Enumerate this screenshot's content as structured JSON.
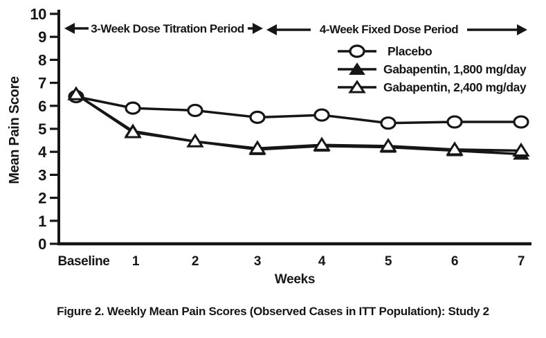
{
  "figure": {
    "caption": "Figure 2. Weekly Mean Pain Scores (Observed Cases in ITT Population): Study 2"
  },
  "annotations": {
    "titration": "3-Week Dose Titration Period",
    "fixed": "4-Week Fixed Dose Period"
  },
  "chart_data": {
    "type": "line",
    "title": "",
    "categories": [
      "Baseline",
      "1",
      "2",
      "3",
      "4",
      "5",
      "6",
      "7"
    ],
    "series": [
      {
        "name": "Placebo",
        "marker": "circle-open",
        "values": [
          6.4,
          5.9,
          5.8,
          5.5,
          5.6,
          5.25,
          5.3,
          5.3
        ]
      },
      {
        "name": "Gabapentin, 1,800 mg/day",
        "marker": "triangle-filled",
        "values": [
          6.5,
          4.9,
          4.45,
          4.1,
          4.25,
          4.2,
          4.05,
          3.9
        ]
      },
      {
        "name": "Gabapentin, 2,400 mg/day",
        "marker": "triangle-open",
        "values": [
          6.5,
          4.85,
          4.45,
          4.15,
          4.3,
          4.25,
          4.1,
          4.05
        ]
      }
    ],
    "xlabel": "Weeks",
    "ylabel": "Mean Pain Score",
    "ylim": [
      0,
      10
    ],
    "ytick_step": 1,
    "grid": false,
    "legend_position": "top-right",
    "colors": {
      "foreground": "#161616",
      "background": "#ffffff"
    }
  }
}
